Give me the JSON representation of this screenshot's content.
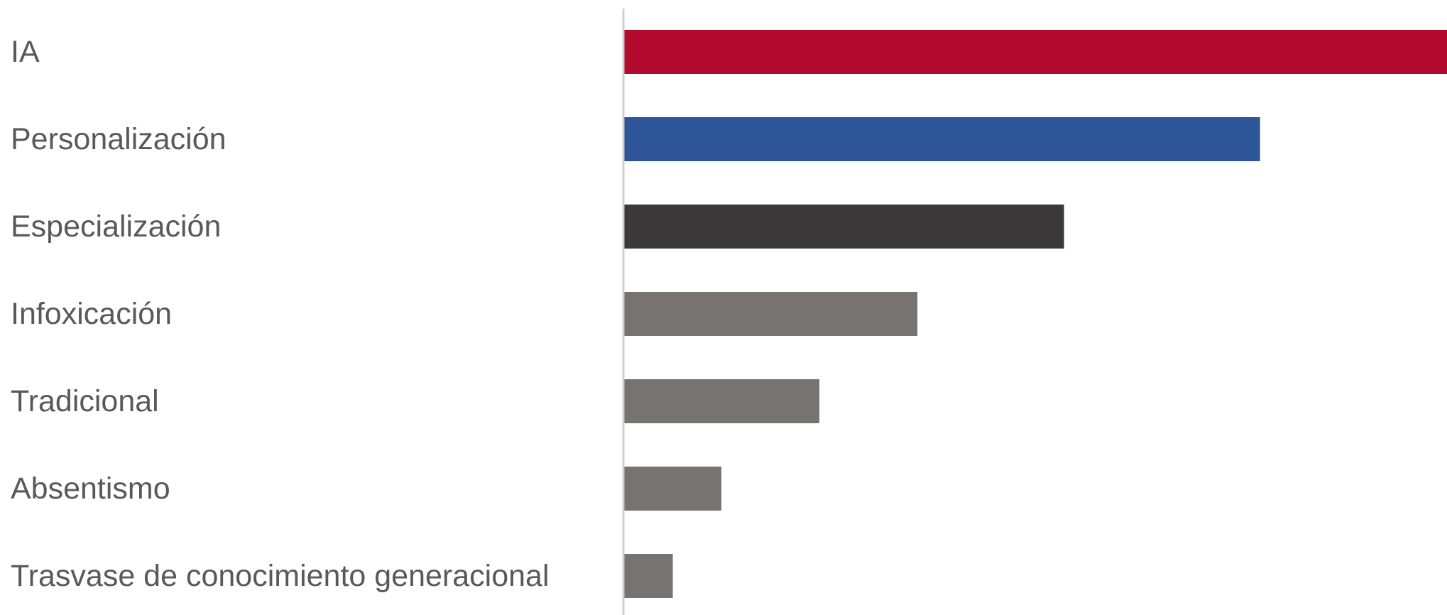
{
  "chart_data": {
    "type": "bar",
    "orientation": "horizontal",
    "categories": [
      "IA",
      "Personalización",
      "Especialización",
      "Infoxicación",
      "Tradicional",
      "Absentismo",
      "Trasvase de conocimiento generacional"
    ],
    "values": [
      100,
      77.3,
      53.5,
      35.7,
      23.8,
      11.9,
      6.0
    ],
    "colors": [
      "#b3092f",
      "#2e5597",
      "#3a3839",
      "#767372",
      "#767372",
      "#767372",
      "#767372"
    ],
    "xlim": [
      0,
      100
    ],
    "title": "",
    "xlabel": "",
    "ylabel": "",
    "grid": false,
    "legend": "none",
    "axis_color": "#d0d0d0"
  }
}
